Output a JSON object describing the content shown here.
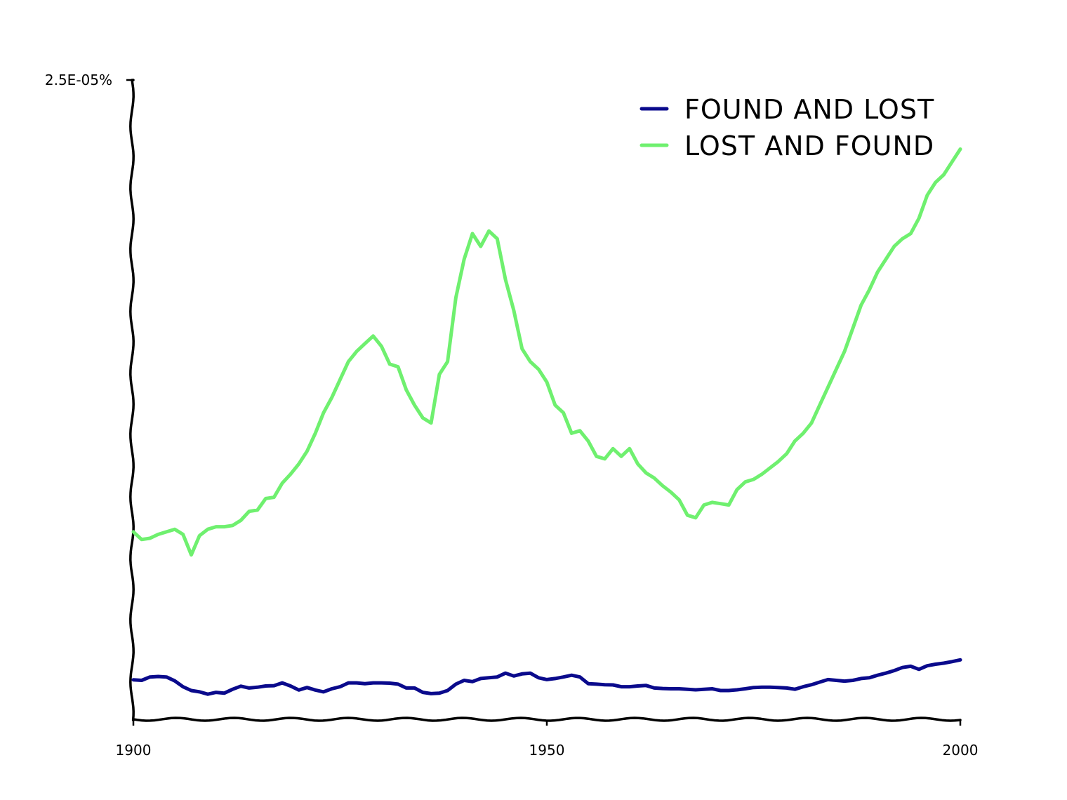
{
  "chart_data": {
    "type": "line",
    "xlim": [
      1900,
      2000
    ],
    "ylim": [
      0,
      2.5e-05
    ],
    "x_ticks": [
      "1900",
      "1950",
      "2000"
    ],
    "y_tick_label": "2.5E-05%",
    "grid": false,
    "legend_position": "top-right",
    "series": [
      {
        "name": "FOUND AND LOST",
        "color": "#0a0a8c",
        "points": [
          [
            1900,
            1.57e-06
          ],
          [
            1901,
            1.55e-06
          ],
          [
            1902,
            1.68e-06
          ],
          [
            1903,
            1.7e-06
          ],
          [
            1904,
            1.68e-06
          ],
          [
            1905,
            1.53e-06
          ],
          [
            1906,
            1.3e-06
          ],
          [
            1907,
            1.15e-06
          ],
          [
            1908,
            1.1e-06
          ],
          [
            1909,
            1.01e-06
          ],
          [
            1910,
            1.08e-06
          ],
          [
            1911,
            1.05e-06
          ],
          [
            1912,
            1.2e-06
          ],
          [
            1913,
            1.32e-06
          ],
          [
            1914,
            1.25e-06
          ],
          [
            1915,
            1.28e-06
          ],
          [
            1916,
            1.33e-06
          ],
          [
            1917,
            1.34e-06
          ],
          [
            1918,
            1.45e-06
          ],
          [
            1919,
            1.33e-06
          ],
          [
            1920,
            1.17e-06
          ],
          [
            1921,
            1.27e-06
          ],
          [
            1922,
            1.17e-06
          ],
          [
            1923,
            1.1e-06
          ],
          [
            1924,
            1.22e-06
          ],
          [
            1925,
            1.3e-06
          ],
          [
            1926,
            1.45e-06
          ],
          [
            1927,
            1.45e-06
          ],
          [
            1928,
            1.42e-06
          ],
          [
            1929,
            1.45e-06
          ],
          [
            1930,
            1.45e-06
          ],
          [
            1931,
            1.44e-06
          ],
          [
            1932,
            1.4e-06
          ],
          [
            1933,
            1.25e-06
          ],
          [
            1934,
            1.25e-06
          ],
          [
            1935,
            1.08e-06
          ],
          [
            1936,
            1.03e-06
          ],
          [
            1937,
            1.05e-06
          ],
          [
            1938,
            1.15e-06
          ],
          [
            1939,
            1.4e-06
          ],
          [
            1940,
            1.55e-06
          ],
          [
            1941,
            1.5e-06
          ],
          [
            1942,
            1.62e-06
          ],
          [
            1943,
            1.65e-06
          ],
          [
            1944,
            1.68e-06
          ],
          [
            1945,
            1.83e-06
          ],
          [
            1946,
            1.72e-06
          ],
          [
            1947,
            1.8e-06
          ],
          [
            1948,
            1.83e-06
          ],
          [
            1949,
            1.65e-06
          ],
          [
            1950,
            1.58e-06
          ],
          [
            1951,
            1.62e-06
          ],
          [
            1952,
            1.68e-06
          ],
          [
            1953,
            1.75e-06
          ],
          [
            1954,
            1.68e-06
          ],
          [
            1955,
            1.42e-06
          ],
          [
            1956,
            1.4e-06
          ],
          [
            1957,
            1.38e-06
          ],
          [
            1958,
            1.37e-06
          ],
          [
            1959,
            1.3e-06
          ],
          [
            1960,
            1.3e-06
          ],
          [
            1961,
            1.33e-06
          ],
          [
            1962,
            1.35e-06
          ],
          [
            1963,
            1.25e-06
          ],
          [
            1964,
            1.23e-06
          ],
          [
            1965,
            1.22e-06
          ],
          [
            1966,
            1.22e-06
          ],
          [
            1967,
            1.2e-06
          ],
          [
            1968,
            1.18e-06
          ],
          [
            1969,
            1.2e-06
          ],
          [
            1970,
            1.22e-06
          ],
          [
            1971,
            1.15e-06
          ],
          [
            1972,
            1.15e-06
          ],
          [
            1973,
            1.18e-06
          ],
          [
            1974,
            1.22e-06
          ],
          [
            1975,
            1.27e-06
          ],
          [
            1976,
            1.28e-06
          ],
          [
            1977,
            1.28e-06
          ],
          [
            1978,
            1.27e-06
          ],
          [
            1979,
            1.25e-06
          ],
          [
            1980,
            1.2e-06
          ],
          [
            1981,
            1.3e-06
          ],
          [
            1982,
            1.38e-06
          ],
          [
            1983,
            1.48e-06
          ],
          [
            1984,
            1.58e-06
          ],
          [
            1985,
            1.55e-06
          ],
          [
            1986,
            1.52e-06
          ],
          [
            1987,
            1.55e-06
          ],
          [
            1988,
            1.62e-06
          ],
          [
            1989,
            1.65e-06
          ],
          [
            1990,
            1.75e-06
          ],
          [
            1991,
            1.83e-06
          ],
          [
            1992,
            1.93e-06
          ],
          [
            1993,
            2.05e-06
          ],
          [
            1994,
            2.1e-06
          ],
          [
            1995,
            1.98e-06
          ],
          [
            1996,
            2.12e-06
          ],
          [
            1997,
            2.18e-06
          ],
          [
            1998,
            2.22e-06
          ],
          [
            1999,
            2.28e-06
          ],
          [
            2000,
            2.35e-06
          ]
        ]
      },
      {
        "name": "LOST AND FOUND",
        "color": "#6ff06f",
        "points": [
          [
            1900,
            7.35e-06
          ],
          [
            1901,
            7.05e-06
          ],
          [
            1902,
            7.1e-06
          ],
          [
            1903,
            7.25e-06
          ],
          [
            1904,
            7.35e-06
          ],
          [
            1905,
            7.45e-06
          ],
          [
            1906,
            7.25e-06
          ],
          [
            1907,
            6.45e-06
          ],
          [
            1908,
            7.2e-06
          ],
          [
            1909,
            7.45e-06
          ],
          [
            1910,
            7.55e-06
          ],
          [
            1911,
            7.55e-06
          ],
          [
            1912,
            7.6e-06
          ],
          [
            1913,
            7.8e-06
          ],
          [
            1914,
            8.15e-06
          ],
          [
            1915,
            8.2e-06
          ],
          [
            1916,
            8.65e-06
          ],
          [
            1917,
            8.7e-06
          ],
          [
            1918,
            9.25e-06
          ],
          [
            1919,
            9.6e-06
          ],
          [
            1920,
            1e-05
          ],
          [
            1921,
            1.05e-05
          ],
          [
            1922,
            1.12e-05
          ],
          [
            1923,
            1.2e-05
          ],
          [
            1924,
            1.26e-05
          ],
          [
            1925,
            1.33e-05
          ],
          [
            1926,
            1.4e-05
          ],
          [
            1927,
            1.44e-05
          ],
          [
            1928,
            1.47e-05
          ],
          [
            1929,
            1.5e-05
          ],
          [
            1930,
            1.46e-05
          ],
          [
            1931,
            1.39e-05
          ],
          [
            1932,
            1.38e-05
          ],
          [
            1933,
            1.29e-05
          ],
          [
            1934,
            1.23e-05
          ],
          [
            1935,
            1.18e-05
          ],
          [
            1936,
            1.16e-05
          ],
          [
            1937,
            1.35e-05
          ],
          [
            1938,
            1.4e-05
          ],
          [
            1939,
            1.65e-05
          ],
          [
            1940,
            1.8e-05
          ],
          [
            1941,
            1.9e-05
          ],
          [
            1942,
            1.85e-05
          ],
          [
            1943,
            1.91e-05
          ],
          [
            1944,
            1.88e-05
          ],
          [
            1945,
            1.72e-05
          ],
          [
            1946,
            1.6e-05
          ],
          [
            1947,
            1.45e-05
          ],
          [
            1948,
            1.4e-05
          ],
          [
            1949,
            1.37e-05
          ],
          [
            1950,
            1.32e-05
          ],
          [
            1951,
            1.23e-05
          ],
          [
            1952,
            1.2e-05
          ],
          [
            1953,
            1.12e-05
          ],
          [
            1954,
            1.13e-05
          ],
          [
            1955,
            1.09e-05
          ],
          [
            1956,
            1.03e-05
          ],
          [
            1957,
            1.02e-05
          ],
          [
            1958,
            1.06e-05
          ],
          [
            1959,
            1.03e-05
          ],
          [
            1960,
            1.06e-05
          ],
          [
            1961,
            1e-05
          ],
          [
            1962,
            9.65e-06
          ],
          [
            1963,
            9.45e-06
          ],
          [
            1964,
            9.15e-06
          ],
          [
            1965,
            8.9e-06
          ],
          [
            1966,
            8.6e-06
          ],
          [
            1967,
            8e-06
          ],
          [
            1968,
            7.9e-06
          ],
          [
            1969,
            8.4e-06
          ],
          [
            1970,
            8.5e-06
          ],
          [
            1971,
            8.45e-06
          ],
          [
            1972,
            8.4e-06
          ],
          [
            1973,
            9e-06
          ],
          [
            1974,
            9.3e-06
          ],
          [
            1975,
            9.4e-06
          ],
          [
            1976,
            9.6e-06
          ],
          [
            1977,
            9.85e-06
          ],
          [
            1978,
            1.01e-05
          ],
          [
            1979,
            1.04e-05
          ],
          [
            1980,
            1.09e-05
          ],
          [
            1981,
            1.12e-05
          ],
          [
            1982,
            1.16e-05
          ],
          [
            1983,
            1.23e-05
          ],
          [
            1984,
            1.3e-05
          ],
          [
            1985,
            1.37e-05
          ],
          [
            1986,
            1.44e-05
          ],
          [
            1987,
            1.53e-05
          ],
          [
            1988,
            1.62e-05
          ],
          [
            1989,
            1.68e-05
          ],
          [
            1990,
            1.75e-05
          ],
          [
            1991,
            1.8e-05
          ],
          [
            1992,
            1.85e-05
          ],
          [
            1993,
            1.88e-05
          ],
          [
            1994,
            1.9e-05
          ],
          [
            1995,
            1.96e-05
          ],
          [
            1996,
            2.05e-05
          ],
          [
            1997,
            2.1e-05
          ],
          [
            1998,
            2.13e-05
          ],
          [
            1999,
            2.18e-05
          ],
          [
            2000,
            2.23e-05
          ]
        ]
      }
    ]
  }
}
